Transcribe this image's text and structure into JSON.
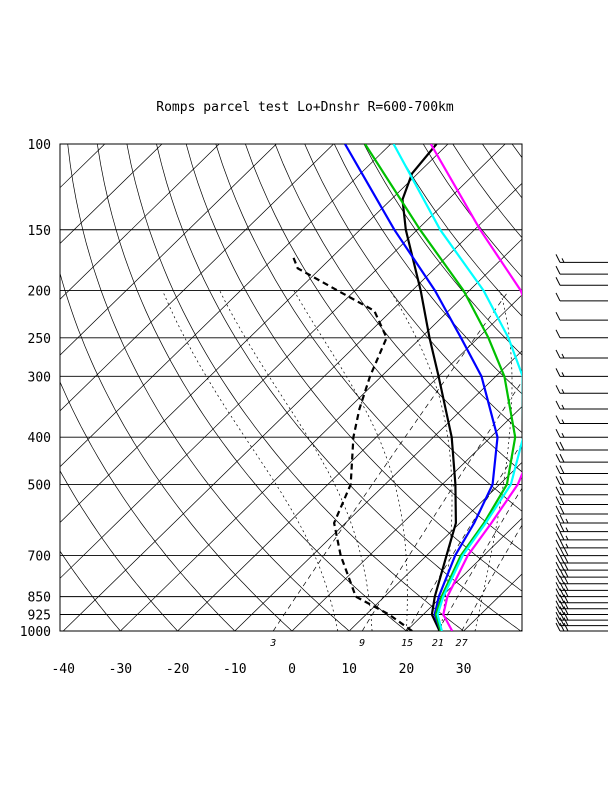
{
  "chart_data": {
    "type": "line",
    "title": "Romps parcel test Lo+Dnshr R=600-700km",
    "pressure_ticks": [
      100,
      150,
      200,
      250,
      300,
      400,
      500,
      700,
      850,
      925,
      1000
    ],
    "temperature_ticks": [
      -40,
      -30,
      -20,
      -10,
      0,
      10,
      20,
      30
    ],
    "mixing_ratio_labels": [
      "3",
      "9",
      "15",
      "21",
      "27"
    ],
    "mixing_ratio_values": [
      3,
      9,
      15,
      21,
      27
    ],
    "xlim": [
      -40,
      40
    ],
    "ylim": [
      1000,
      100
    ],
    "y_scale": "log",
    "series": [
      {
        "color": "#000000",
        "style": "solid",
        "points": [
          [
            1000,
            25.8
          ],
          [
            925,
            21.5
          ],
          [
            850,
            18.8
          ],
          [
            700,
            13.5
          ],
          [
            600,
            9.3
          ],
          [
            500,
            2.3
          ],
          [
            400,
            -6.8
          ],
          [
            300,
            -20
          ],
          [
            250,
            -28.5
          ],
          [
            200,
            -38.5
          ],
          [
            150,
            -52
          ],
          [
            130,
            -58
          ],
          [
            115,
            -61
          ],
          [
            100,
            -62
          ]
        ]
      },
      {
        "color": "#000000",
        "style": "dashed",
        "points": [
          [
            1000,
            21
          ],
          [
            925,
            14
          ],
          [
            850,
            5
          ],
          [
            700,
            -5
          ],
          [
            600,
            -12
          ],
          [
            500,
            -16
          ],
          [
            400,
            -24
          ],
          [
            350,
            -28
          ],
          [
            300,
            -32
          ],
          [
            250,
            -36
          ],
          [
            220,
            -43
          ],
          [
            200,
            -53
          ],
          [
            180,
            -64
          ],
          [
            170,
            -67
          ]
        ]
      },
      {
        "color": "#0000ff",
        "style": "solid",
        "points": [
          [
            1000,
            26
          ],
          [
            925,
            22
          ],
          [
            850,
            19.5
          ],
          [
            700,
            15
          ],
          [
            600,
            12.5
          ],
          [
            500,
            8.8
          ],
          [
            400,
            1.2
          ],
          [
            300,
            -12.5
          ],
          [
            250,
            -23
          ],
          [
            200,
            -36
          ],
          [
            150,
            -54
          ],
          [
            100,
            -78
          ]
        ]
      },
      {
        "color": "#00c000",
        "style": "solid",
        "points": [
          [
            1000,
            26
          ],
          [
            925,
            22.2
          ],
          [
            850,
            20
          ],
          [
            700,
            16
          ],
          [
            600,
            14.2
          ],
          [
            500,
            11.3
          ],
          [
            400,
            4.3
          ],
          [
            300,
            -8.5
          ],
          [
            250,
            -18.2
          ],
          [
            200,
            -31
          ],
          [
            150,
            -49.5
          ],
          [
            100,
            -74.5
          ]
        ]
      },
      {
        "color": "#00ffff",
        "style": "solid",
        "points": [
          [
            1000,
            26.2
          ],
          [
            925,
            22.5
          ],
          [
            850,
            20.3
          ],
          [
            700,
            16.3
          ],
          [
            600,
            14.5
          ],
          [
            500,
            12
          ],
          [
            400,
            5.7
          ],
          [
            300,
            -5.3
          ],
          [
            250,
            -14.7
          ],
          [
            200,
            -27.5
          ],
          [
            150,
            -46
          ],
          [
            100,
            -69.5
          ]
        ]
      },
      {
        "color": "#ff00ff",
        "style": "solid",
        "points": [
          [
            1000,
            28
          ],
          [
            925,
            23.5
          ],
          [
            850,
            21
          ],
          [
            700,
            17.2
          ],
          [
            600,
            15.5
          ],
          [
            500,
            13.2
          ],
          [
            400,
            8.2
          ],
          [
            300,
            -1
          ],
          [
            250,
            -9.5
          ],
          [
            200,
            -21
          ],
          [
            150,
            -39
          ],
          [
            100,
            -63
          ]
        ]
      }
    ],
    "wind_barbs_pressures": [
      1000,
      975,
      950,
      925,
      900,
      875,
      850,
      825,
      800,
      775,
      750,
      725,
      700,
      675,
      650,
      625,
      600,
      575,
      550,
      525,
      500,
      475,
      450,
      425,
      400,
      375,
      350,
      325,
      300,
      275,
      250,
      230,
      210,
      195,
      185,
      175
    ],
    "wind_barbs_kt": [
      30,
      30,
      30,
      30,
      30,
      30,
      30,
      30,
      30,
      30,
      30,
      30,
      30,
      25,
      25,
      25,
      25,
      20,
      20,
      20,
      20,
      20,
      20,
      20,
      15,
      15,
      15,
      15,
      15,
      15,
      10,
      10,
      10,
      10,
      10,
      15
    ],
    "grid": true
  }
}
